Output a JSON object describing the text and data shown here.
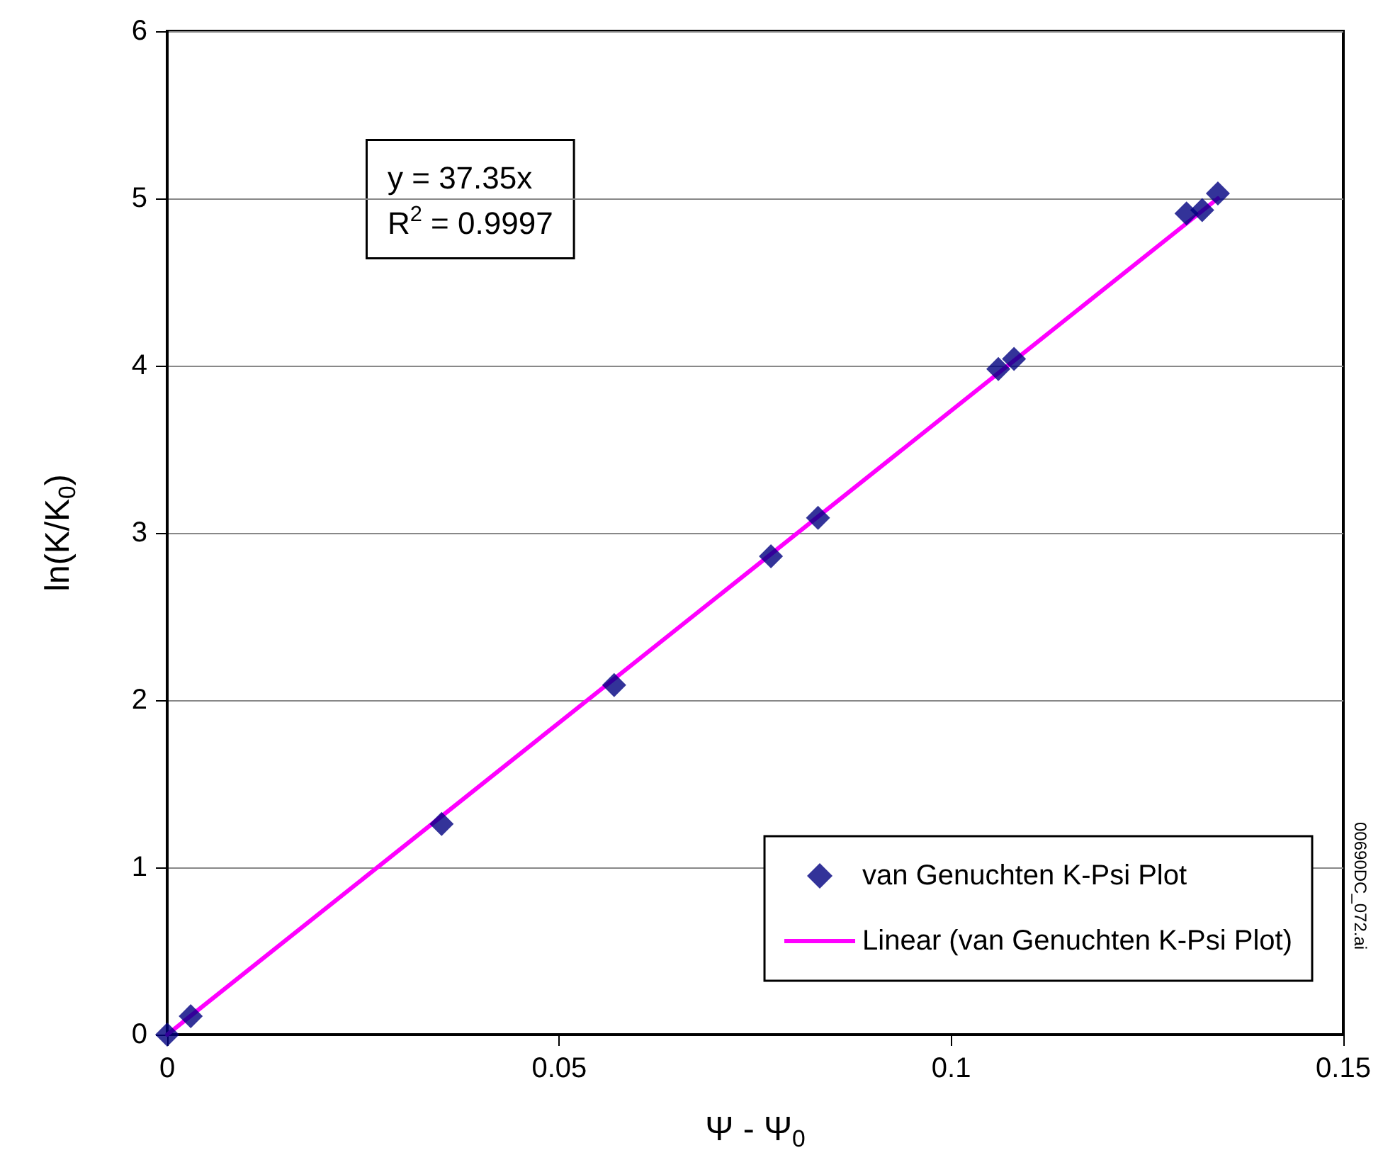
{
  "chart_data": {
    "type": "scatter",
    "xlabel": "Ψ - Ψ$_{0}$",
    "ylabel": "ln(K/K$_{0}$)",
    "xlim": [
      0,
      0.15
    ],
    "xticks": [
      0,
      0.05,
      0.1,
      0.15
    ],
    "ylim": [
      0,
      6
    ],
    "yticks": [
      0,
      1,
      2,
      3,
      4,
      5,
      6
    ],
    "grid": "y",
    "legend": "bottom right",
    "series": [
      {
        "name": "van Genuchten K-Psi Plot",
        "marker": "diamond",
        "color": "#000080",
        "x": [
          0,
          0.003,
          0.035,
          0.057,
          0.077,
          0.083,
          0.106,
          0.108,
          0.13,
          0.132,
          0.134
        ],
        "values": [
          0,
          0.11,
          1.26,
          2.09,
          2.86,
          3.09,
          3.98,
          4.04,
          4.91,
          4.93,
          5.03
        ]
      },
      {
        "name": "Linear (van Genuchten K-Psi Plot)",
        "type": "line",
        "marker": "none",
        "line_style": "solid",
        "color": "#ff00ff",
        "x": [
          0,
          0.134
        ],
        "values": [
          0,
          5.0
        ]
      }
    ],
    "annotations": [
      "y = 37.35x\nR$^{2}$ = 0.9997",
      "00690DC_072.ai"
    ]
  }
}
